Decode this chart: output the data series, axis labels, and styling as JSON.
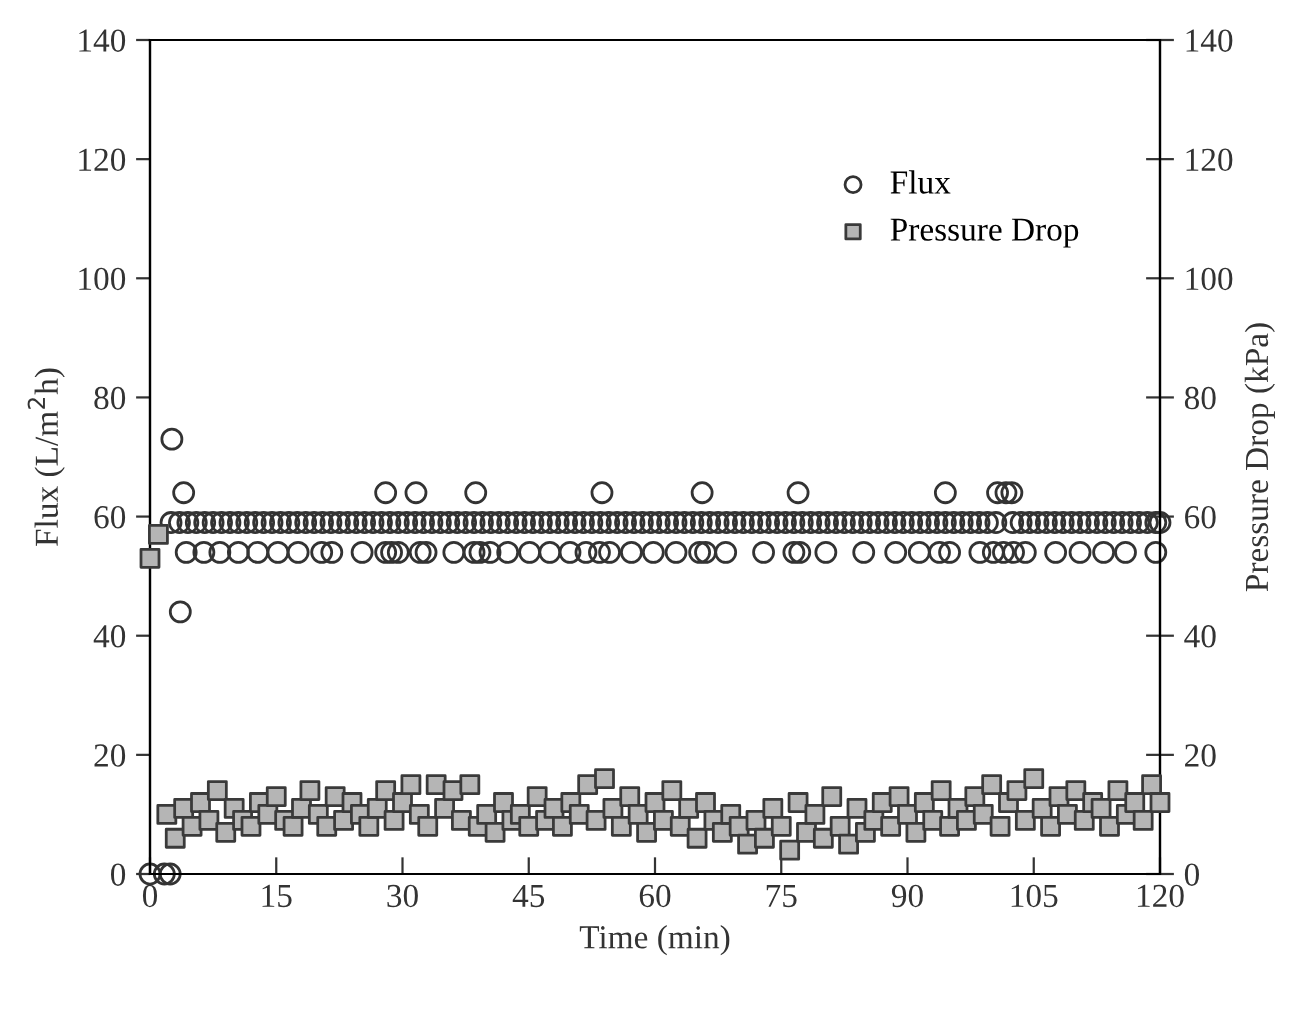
{
  "chart_data": {
    "type": "scatter",
    "xlabel": "Time (min)",
    "ylabel": "Flux (L/m$^{2}$h)",
    "y2label": "Pressure Drop (kPa)",
    "xlim": [
      0,
      120
    ],
    "xticks": [
      0,
      15,
      30,
      45,
      60,
      75,
      90,
      105,
      120
    ],
    "ylim": [
      0,
      140
    ],
    "yticks": [
      0,
      20,
      40,
      60,
      80,
      100,
      120,
      140
    ],
    "y2lim": [
      0,
      140
    ],
    "y2ticks": [
      0,
      20,
      40,
      60,
      80,
      100,
      120,
      140
    ],
    "grid": false,
    "legend": "top right",
    "series": [
      {
        "name": "Flux",
        "color": "#333333",
        "marker": "circle",
        "x": [
          0,
          1.7,
          2.4,
          2.6,
          3.6,
          4.0,
          28.0,
          31.6,
          38.7,
          53.7,
          65.6,
          77.0,
          94.5,
          100.7,
          101.7,
          102.4,
          4.3,
          6.4,
          8.3,
          10.5,
          12.8,
          15.2,
          17.6,
          20.4,
          21.6,
          25.2,
          28.0,
          28.7,
          29.5,
          32.1,
          32.8,
          36.1,
          38.5,
          39.2,
          40.4,
          42.5,
          45.1,
          47.5,
          49.9,
          51.8,
          53.4,
          54.6,
          57.2,
          59.8,
          62.5,
          65.3,
          66.0,
          68.4,
          72.9,
          76.5,
          77.2,
          80.3,
          84.8,
          88.6,
          91.4,
          93.8,
          95.0,
          98.6,
          100.2,
          101.4,
          102.6,
          104.0,
          107.6,
          110.5,
          113.3,
          115.9,
          119.5,
          2.5,
          3.5,
          4.5,
          5.5,
          6.5,
          7.5,
          8.5,
          9.5,
          10.5,
          11.5,
          12.5,
          13.5,
          14.5,
          15.5,
          16.5,
          17.5,
          18.5,
          19.5,
          20.5,
          21.5,
          22.5,
          23.5,
          24.5,
          25.5,
          26.5,
          27.5,
          28.5,
          29.5,
          30.5,
          31.5,
          32.5,
          33.5,
          34.5,
          35.5,
          36.5,
          37.5,
          38.5,
          39.5,
          40.5,
          41.5,
          42.5,
          43.5,
          44.5,
          45.5,
          46.5,
          47.5,
          48.5,
          49.5,
          50.5,
          51.5,
          52.5,
          53.5,
          54.5,
          55.5,
          56.5,
          57.5,
          58.5,
          59.5,
          60.5,
          61.5,
          62.5,
          63.5,
          64.5,
          65.5,
          66.5,
          67.5,
          68.5,
          69.5,
          70.5,
          71.5,
          72.5,
          73.5,
          74.5,
          75.5,
          76.5,
          77.5,
          78.5,
          79.5,
          80.5,
          81.5,
          82.5,
          83.5,
          84.5,
          85.5,
          86.5,
          87.5,
          88.5,
          89.5,
          90.5,
          91.5,
          92.5,
          93.5,
          94.5,
          95.5,
          96.5,
          97.5,
          98.5,
          99.5,
          100.5,
          102.5,
          103.5,
          104.5,
          105.5,
          106.5,
          107.5,
          108.5,
          109.5,
          110.5,
          111.5,
          112.5,
          113.5,
          114.5,
          115.5,
          116.5,
          117.5,
          118.5,
          119.5,
          120
        ],
        "values": [
          0,
          0,
          0,
          73,
          44,
          64,
          64,
          64,
          64,
          64,
          64,
          64,
          64,
          64,
          64,
          64,
          54,
          54,
          54,
          54,
          54,
          54,
          54,
          54,
          54,
          54,
          54,
          54,
          54,
          54,
          54,
          54,
          54,
          54,
          54,
          54,
          54,
          54,
          54,
          54,
          54,
          54,
          54,
          54,
          54,
          54,
          54,
          54,
          54,
          54,
          54,
          54,
          54,
          54,
          54,
          54,
          54,
          54,
          54,
          54,
          54,
          54,
          54,
          54,
          54,
          54,
          54,
          59,
          59,
          59,
          59,
          59,
          59,
          59,
          59,
          59,
          59,
          59,
          59,
          59,
          59,
          59,
          59,
          59,
          59,
          59,
          59,
          59,
          59,
          59,
          59,
          59,
          59,
          59,
          59,
          59,
          59,
          59,
          59,
          59,
          59,
          59,
          59,
          59,
          59,
          59,
          59,
          59,
          59,
          59,
          59,
          59,
          59,
          59,
          59,
          59,
          59,
          59,
          59,
          59,
          59,
          59,
          59,
          59,
          59,
          59,
          59,
          59,
          59,
          59,
          59,
          59,
          59,
          59,
          59,
          59,
          59,
          59,
          59,
          59,
          59,
          59,
          59,
          59,
          59,
          59,
          59,
          59,
          59,
          59,
          59,
          59,
          59,
          59,
          59,
          59,
          59,
          59,
          59,
          59,
          59,
          59,
          59,
          59,
          59,
          59,
          59,
          59,
          59,
          59,
          59,
          59,
          59,
          59,
          59,
          59,
          59,
          59,
          59,
          59,
          59,
          59,
          59,
          59,
          59
        ]
      },
      {
        "name": "Pressure Drop",
        "color": "#b5b5b5",
        "marker": "square",
        "axis": "y2",
        "x": [
          0,
          1,
          2,
          3,
          4,
          5,
          6,
          7,
          8,
          9,
          10,
          11,
          12,
          13,
          14,
          15,
          16,
          17,
          18,
          19,
          20,
          21,
          22,
          23,
          24,
          25,
          26,
          27,
          28,
          29,
          30,
          31,
          32,
          33,
          34,
          35,
          36,
          37,
          38,
          39,
          40,
          41,
          42,
          43,
          44,
          45,
          46,
          47,
          48,
          49,
          50,
          51,
          52,
          53,
          54,
          55,
          56,
          57,
          58,
          59,
          60,
          61,
          62,
          63,
          64,
          65,
          66,
          67,
          68,
          69,
          70,
          71,
          72,
          73,
          74,
          75,
          76,
          77,
          78,
          79,
          80,
          81,
          82,
          83,
          84,
          85,
          86,
          87,
          88,
          89,
          90,
          91,
          92,
          93,
          94,
          95,
          96,
          97,
          98,
          99,
          100,
          101,
          102,
          103,
          104,
          105,
          106,
          107,
          108,
          109,
          110,
          111,
          112,
          113,
          114,
          115,
          116,
          117,
          118,
          119,
          120
        ],
        "values": [
          53,
          57,
          10,
          6,
          11,
          8,
          12,
          9,
          14,
          7,
          11,
          9,
          8,
          12,
          10,
          13,
          9,
          8,
          11,
          14,
          10,
          8,
          13,
          9,
          12,
          10,
          8,
          11,
          14,
          9,
          12,
          15,
          10,
          8,
          15,
          11,
          14,
          9,
          15,
          8,
          10,
          7,
          12,
          9,
          10,
          8,
          13,
          9,
          11,
          8,
          12,
          10,
          15,
          9,
          16,
          11,
          8,
          13,
          10,
          7,
          12,
          9,
          14,
          8,
          11,
          6,
          12,
          9,
          7,
          10,
          8,
          5,
          9,
          6,
          11,
          8,
          4,
          12,
          7,
          10,
          6,
          13,
          8,
          5,
          11,
          7,
          9,
          12,
          8,
          13,
          10,
          7,
          12,
          9,
          14,
          8,
          11,
          9,
          13,
          10,
          15,
          8,
          12,
          14,
          9,
          16,
          11,
          8,
          13,
          10,
          14,
          9,
          12,
          11,
          8,
          14,
          10,
          12,
          9,
          15,
          12
        ]
      }
    ]
  }
}
